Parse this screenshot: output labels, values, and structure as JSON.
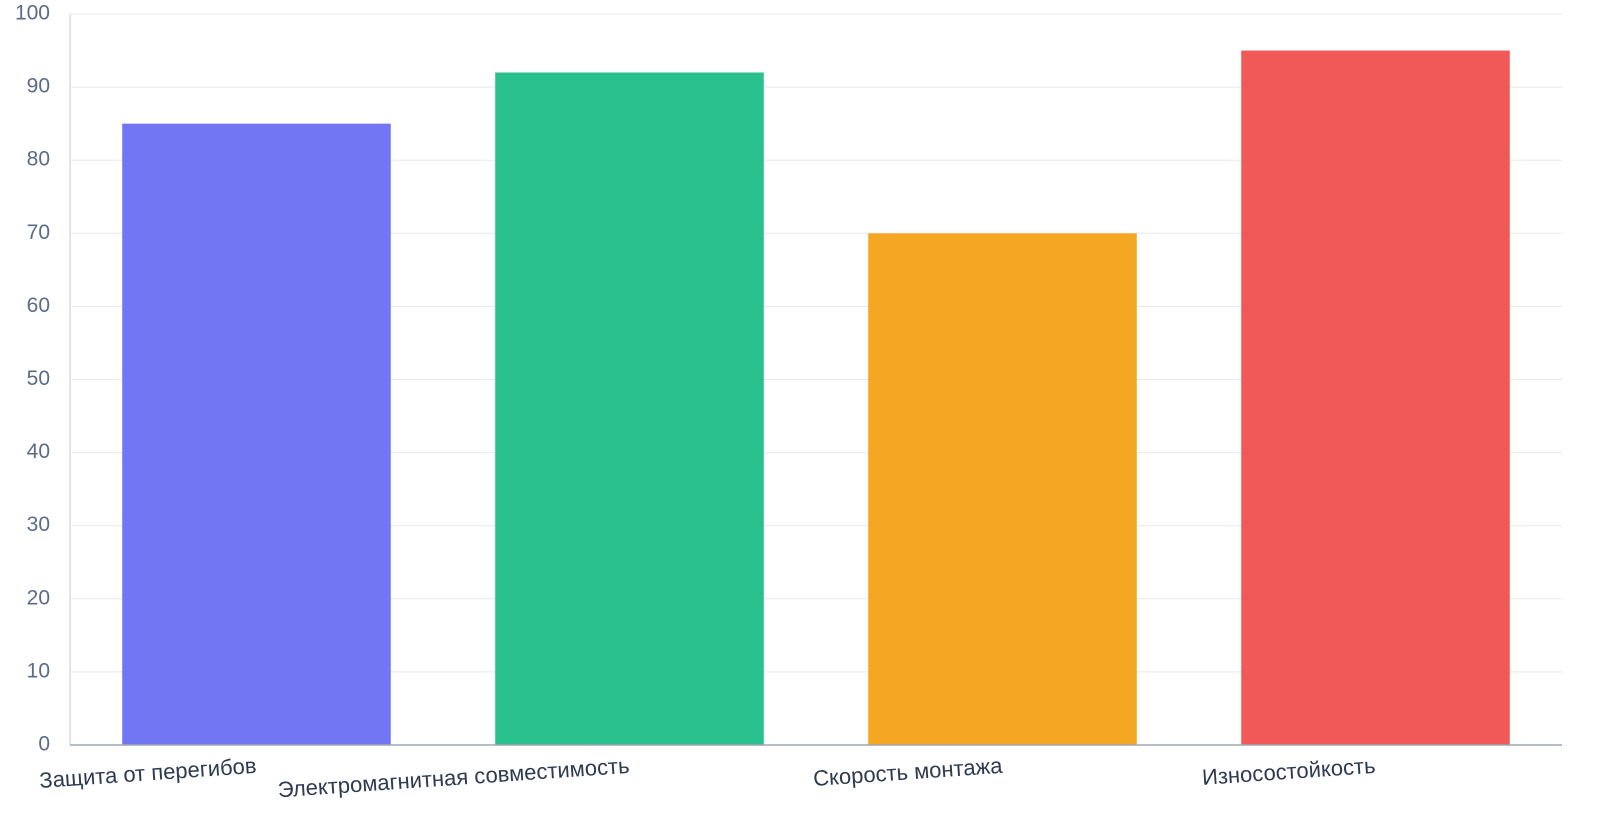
{
  "chart_data": {
    "type": "bar",
    "categories": [
      "Защита от перегибов",
      "Электромагнитная совместимость",
      "Скорость монтажа",
      "Износостойкость"
    ],
    "values": [
      85,
      92,
      70,
      95
    ],
    "colors": [
      "#7376f2",
      "#2bc18f",
      "#f5a723",
      "#f15959"
    ],
    "ylim": [
      0,
      100
    ],
    "yticks": [
      0,
      10,
      20,
      30,
      40,
      50,
      60,
      70,
      80,
      90,
      100
    ],
    "grid": true
  }
}
